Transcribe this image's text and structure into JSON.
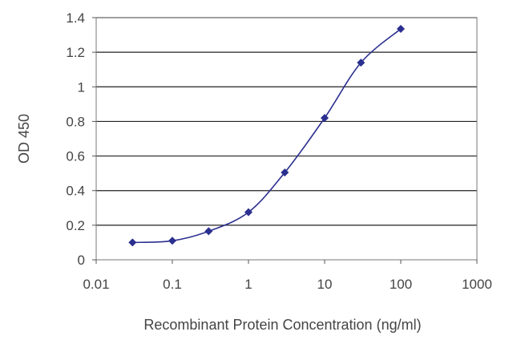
{
  "chart_data": {
    "type": "line",
    "xlabel": "Recombinant Protein Concentration (ng/ml)",
    "ylabel": "OD 450",
    "x_scale": "log",
    "xlim": [
      0.01,
      1000
    ],
    "ylim": [
      0,
      1.4
    ],
    "x_ticks": [
      "0.01",
      "0.1",
      "1",
      "10",
      "100",
      "1000"
    ],
    "y_ticks": [
      "0",
      "0.2",
      "0.4",
      "0.6",
      "0.8",
      "1",
      "1.2",
      "1.4"
    ],
    "grid": "horizontal",
    "legend": "none",
    "series": [
      {
        "x": [
          0.03,
          0.1,
          0.3,
          1,
          3,
          10,
          30,
          100
        ],
        "y": [
          0.1,
          0.11,
          0.165,
          0.275,
          0.505,
          0.82,
          1.14,
          1.335
        ]
      }
    ],
    "colors": {
      "series": "#2b2f8f",
      "grid": "#222222",
      "text": "#444444"
    }
  }
}
